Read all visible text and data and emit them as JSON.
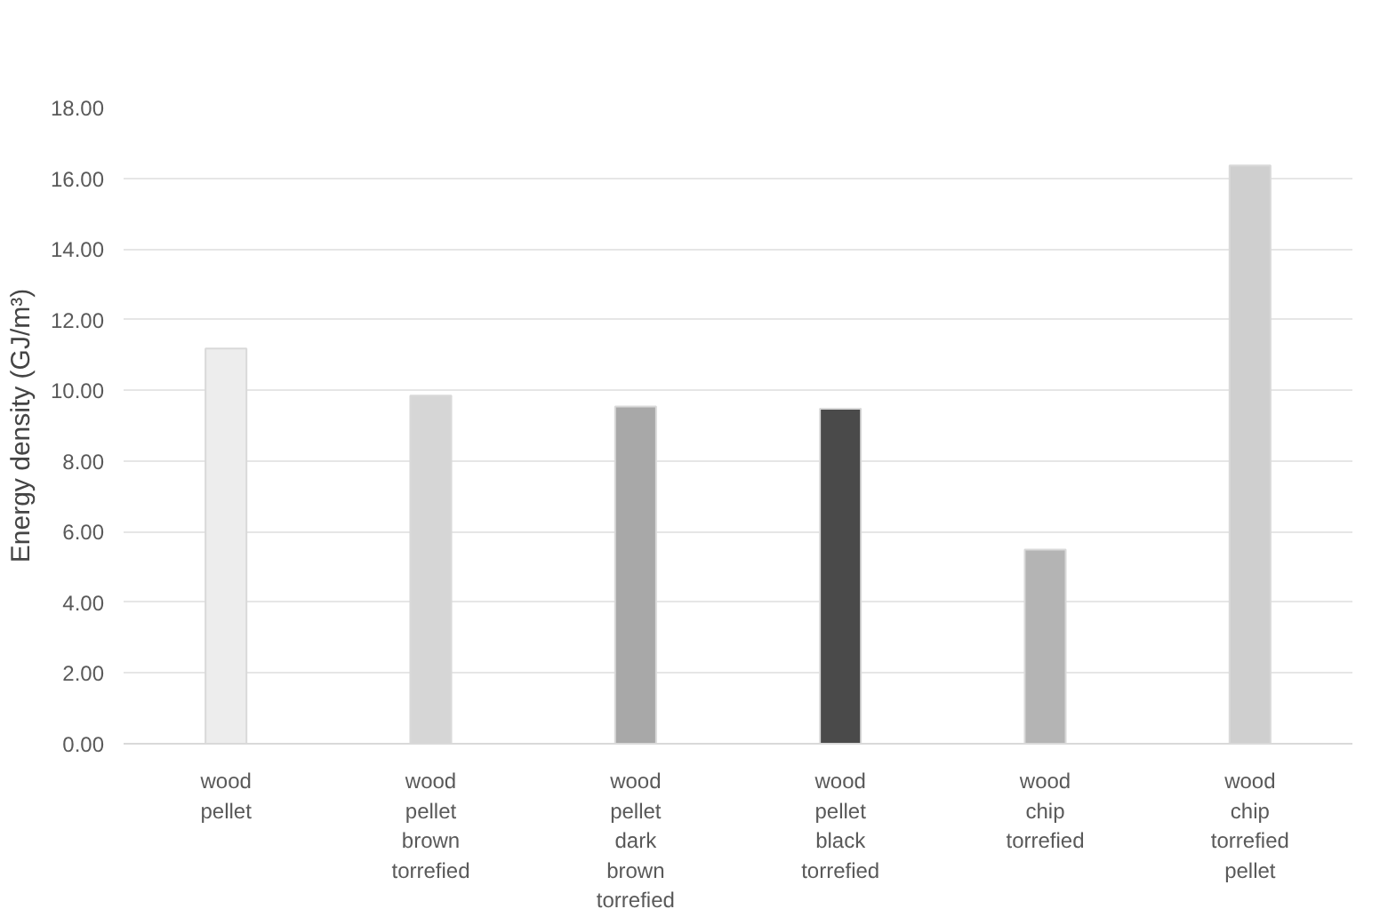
{
  "chart_data": {
    "type": "bar",
    "ylabel": "Energy density (GJ/m³)",
    "categories": [
      "wood pellet",
      "wood pellet brown torrefied",
      "wood pellet dark brown torrefied",
      "wood pellet black torrefied",
      "wood chip torrefied",
      "wood chip torrefied pellet"
    ],
    "values": [
      11.18,
      9.85,
      9.54,
      9.48,
      5.49,
      16.36
    ],
    "colors": [
      "#ededed",
      "#d6d6d6",
      "#a8a8a8",
      "#4a4a4a",
      "#b4b4b4",
      "#cfcfcf"
    ],
    "ylim": [
      0,
      18
    ],
    "yticks": [
      {
        "value": 0,
        "label": "0.00"
      },
      {
        "value": 2,
        "label": "2.00"
      },
      {
        "value": 4,
        "label": "4.00"
      },
      {
        "value": 6,
        "label": "6.00"
      },
      {
        "value": 8,
        "label": "8.00"
      },
      {
        "value": 10,
        "label": "10.00"
      },
      {
        "value": 12,
        "label": "12.00"
      },
      {
        "value": 14,
        "label": "14.00"
      },
      {
        "value": 16,
        "label": "16.00"
      },
      {
        "value": 18,
        "label": "18.00"
      }
    ],
    "grid": "y"
  }
}
